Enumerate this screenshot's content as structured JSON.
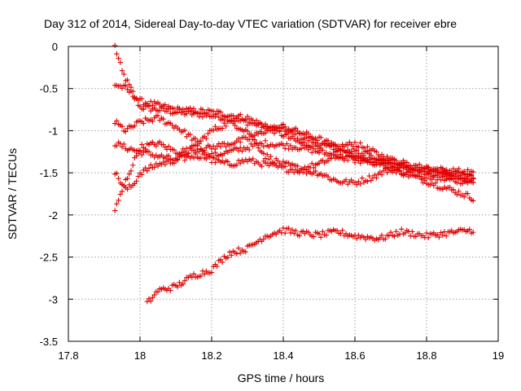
{
  "chart_data": {
    "type": "scatter",
    "title": "Day 312 of 2014, Sidereal Day-to-day VTEC variation (SDTVAR) for receiver ebre",
    "xlabel": "GPS time / hours",
    "ylabel": "SDTVAR / TECUs",
    "xlim": [
      17.8,
      19.0
    ],
    "ylim": [
      -3.5,
      0.0
    ],
    "xticks": [
      17.8,
      18.0,
      18.2,
      18.4,
      18.6,
      18.8,
      19.0
    ],
    "xtick_labels": [
      "17.8",
      "18",
      "18.2",
      "18.4",
      "18.6",
      "18.8",
      "19"
    ],
    "yticks": [
      0.0,
      -0.5,
      -1.0,
      -1.5,
      -2.0,
      -2.5,
      -3.0,
      -3.5
    ],
    "ytick_labels": [
      "0",
      "-0.5",
      "-1",
      "-1.5",
      "-2",
      "-2.5",
      "-3",
      "-3.5"
    ],
    "grid": true,
    "marker": "plus",
    "color": "#e00000",
    "point_step_hours": 0.005,
    "series": [
      {
        "name": "track-a",
        "x_start": 17.93,
        "x_end": 18.93,
        "anchors": [
          [
            17.93,
            0.0
          ],
          [
            17.95,
            -0.3
          ],
          [
            17.98,
            -0.55
          ],
          [
            18.0,
            -0.72
          ],
          [
            18.05,
            -0.75
          ],
          [
            18.1,
            -0.78
          ],
          [
            18.2,
            -0.82
          ],
          [
            18.3,
            -0.9
          ],
          [
            18.4,
            -1.0
          ],
          [
            18.5,
            -1.15
          ],
          [
            18.6,
            -1.3
          ],
          [
            18.7,
            -1.45
          ],
          [
            18.8,
            -1.55
          ],
          [
            18.9,
            -1.6
          ],
          [
            18.93,
            -1.62
          ]
        ]
      },
      {
        "name": "track-b",
        "x_start": 17.93,
        "x_end": 18.93,
        "anchors": [
          [
            17.93,
            -0.45
          ],
          [
            17.96,
            -0.5
          ],
          [
            18.0,
            -0.65
          ],
          [
            18.05,
            -0.7
          ],
          [
            18.1,
            -0.75
          ],
          [
            18.2,
            -0.78
          ],
          [
            18.3,
            -0.85
          ],
          [
            18.35,
            -0.95
          ],
          [
            18.45,
            -1.15
          ],
          [
            18.55,
            -1.2
          ],
          [
            18.6,
            -1.15
          ],
          [
            18.65,
            -1.25
          ],
          [
            18.7,
            -1.35
          ],
          [
            18.8,
            -1.5
          ],
          [
            18.93,
            -1.55
          ]
        ]
      },
      {
        "name": "track-c",
        "x_start": 17.93,
        "x_end": 18.93,
        "anchors": [
          [
            17.93,
            -1.15
          ],
          [
            17.96,
            -1.2
          ],
          [
            18.0,
            -1.25
          ],
          [
            18.05,
            -1.3
          ],
          [
            18.1,
            -1.35
          ],
          [
            18.15,
            -1.3
          ],
          [
            18.2,
            -1.3
          ],
          [
            18.25,
            -1.25
          ],
          [
            18.3,
            -1.2
          ],
          [
            18.35,
            -1.15
          ],
          [
            18.45,
            -1.2
          ],
          [
            18.55,
            -1.3
          ],
          [
            18.65,
            -1.35
          ],
          [
            18.75,
            -1.45
          ],
          [
            18.85,
            -1.5
          ],
          [
            18.93,
            -1.55
          ]
        ]
      },
      {
        "name": "track-d",
        "x_start": 17.93,
        "x_end": 18.93,
        "anchors": [
          [
            17.93,
            -0.9
          ],
          [
            17.96,
            -1.0
          ],
          [
            18.0,
            -0.9
          ],
          [
            18.05,
            -0.85
          ],
          [
            18.1,
            -0.95
          ],
          [
            18.15,
            -1.1
          ],
          [
            18.2,
            -1.35
          ],
          [
            18.25,
            -1.4
          ],
          [
            18.3,
            -1.35
          ],
          [
            18.35,
            -1.4
          ],
          [
            18.4,
            -1.45
          ],
          [
            18.5,
            -1.5
          ],
          [
            18.55,
            -1.6
          ],
          [
            18.6,
            -1.62
          ],
          [
            18.65,
            -1.55
          ],
          [
            18.7,
            -1.45
          ],
          [
            18.8,
            -1.6
          ],
          [
            18.9,
            -1.75
          ],
          [
            18.93,
            -1.8
          ]
        ]
      },
      {
        "name": "track-e",
        "x_start": 17.93,
        "x_end": 18.93,
        "anchors": [
          [
            17.93,
            -1.5
          ],
          [
            17.96,
            -1.7
          ],
          [
            17.98,
            -1.65
          ],
          [
            18.0,
            -1.5
          ],
          [
            18.05,
            -1.4
          ],
          [
            18.1,
            -1.35
          ],
          [
            18.15,
            -1.2
          ],
          [
            18.2,
            -1.0
          ],
          [
            18.25,
            -0.9
          ],
          [
            18.3,
            -1.0
          ],
          [
            18.35,
            -1.3
          ],
          [
            18.4,
            -1.4
          ],
          [
            18.45,
            -1.45
          ],
          [
            18.5,
            -1.4
          ],
          [
            18.55,
            -1.3
          ],
          [
            18.6,
            -1.35
          ],
          [
            18.7,
            -1.4
          ],
          [
            18.8,
            -1.45
          ],
          [
            18.93,
            -1.6
          ]
        ]
      },
      {
        "name": "track-f",
        "x_start": 17.93,
        "x_end": 18.93,
        "anchors": [
          [
            17.93,
            -1.95
          ],
          [
            17.96,
            -1.6
          ],
          [
            18.0,
            -1.2
          ],
          [
            18.05,
            -1.15
          ],
          [
            18.1,
            -1.25
          ],
          [
            18.2,
            -1.2
          ],
          [
            18.3,
            -1.1
          ],
          [
            18.35,
            -1.0
          ],
          [
            18.4,
            -0.95
          ],
          [
            18.5,
            -1.1
          ],
          [
            18.55,
            -1.2
          ],
          [
            18.6,
            -1.25
          ],
          [
            18.7,
            -1.35
          ],
          [
            18.8,
            -1.45
          ],
          [
            18.93,
            -1.5
          ]
        ]
      },
      {
        "name": "track-g",
        "x_start": 18.02,
        "x_end": 18.93,
        "anchors": [
          [
            18.02,
            -3.05
          ],
          [
            18.05,
            -2.9
          ],
          [
            18.1,
            -2.85
          ],
          [
            18.15,
            -2.72
          ],
          [
            18.2,
            -2.65
          ],
          [
            18.25,
            -2.45
          ],
          [
            18.3,
            -2.4
          ],
          [
            18.35,
            -2.25
          ],
          [
            18.4,
            -2.18
          ],
          [
            18.45,
            -2.22
          ],
          [
            18.5,
            -2.24
          ],
          [
            18.55,
            -2.2
          ],
          [
            18.6,
            -2.25
          ],
          [
            18.67,
            -2.28
          ],
          [
            18.73,
            -2.2
          ],
          [
            18.8,
            -2.25
          ],
          [
            18.85,
            -2.22
          ],
          [
            18.93,
            -2.18
          ]
        ]
      }
    ]
  }
}
